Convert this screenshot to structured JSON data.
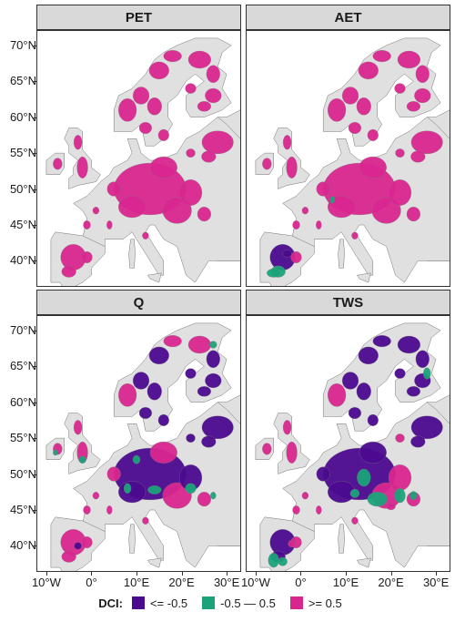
{
  "panels": [
    {
      "title": "PET",
      "pattern": "pet"
    },
    {
      "title": "AET",
      "pattern": "aet"
    },
    {
      "title": "Q",
      "pattern": "q"
    },
    {
      "title": "TWS",
      "pattern": "tws"
    }
  ],
  "y_axis_labels": [
    "70°N",
    "65°N",
    "60°N",
    "55°N",
    "50°N",
    "45°N",
    "40°N"
  ],
  "x_axis_labels": [
    "10°W",
    "0°",
    "10°E",
    "20°E",
    "30°E"
  ],
  "legend": {
    "title": "DCI:",
    "items": [
      {
        "label": "<= -0.5",
        "color": "#4b0a8e"
      },
      {
        "label": "-0.5 — 0.5",
        "color": "#1aa37a"
      },
      {
        "label": ">= 0.5",
        "color": "#d9268f"
      }
    ]
  },
  "colors": {
    "land": "#e0e0e0",
    "sea": "#ffffff",
    "coast": "#555555",
    "low": "#4b0a8e",
    "mid": "#1aa37a",
    "high": "#d9268f"
  }
}
